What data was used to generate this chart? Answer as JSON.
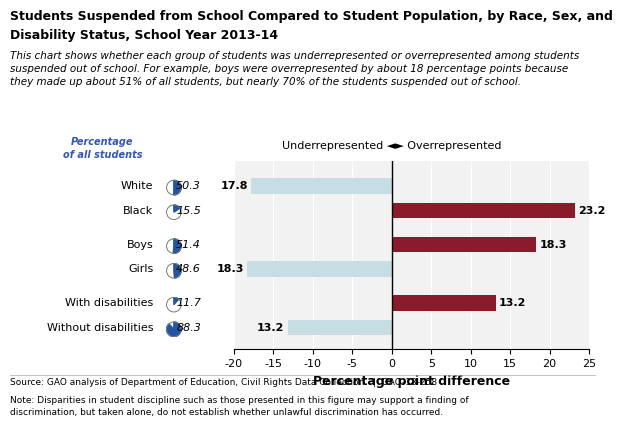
{
  "title_line1": "Students Suspended from School Compared to Student Population, by Race, Sex, and",
  "title_line2": "Disability Status, School Year 2013-14",
  "subtitle": "This chart shows whether each group of students was underrepresented or overrepresented among students\nsuspended out of school. For example, boys were overrepresented by about 18 percentage points because\nthey made up about 51% of all students, but nearly 70% of the students suspended out of school.",
  "categories": [
    "White",
    "Black",
    "Boys",
    "Girls",
    "With disabilities",
    "Without disabilities"
  ],
  "percentages": [
    50.3,
    15.5,
    51.4,
    48.6,
    11.7,
    88.3
  ],
  "values": [
    -17.8,
    23.2,
    18.3,
    -18.3,
    13.2,
    -13.2
  ],
  "bar_colors": [
    "#c5dde3",
    "#8b1a2a",
    "#8b1a2a",
    "#c5dde3",
    "#8b1a2a",
    "#c5dde3"
  ],
  "xlim": [
    -20,
    25
  ],
  "xticks": [
    -20,
    -15,
    -10,
    -5,
    0,
    5,
    10,
    15,
    20,
    25
  ],
  "xlabel": "Percentage point difference",
  "pct_label_color": "#3355bb",
  "source_text": "Source: GAO analysis of Department of Education, Civil Rights Data Collection.  |  GAO-18-258",
  "note_text": "Note: Disparities in student discipline such as those presented in this figure may support a finding of\ndiscrimination, but taken alone, do not establish whether unlawful discrimination has occurred.",
  "pie_fill_fractions": [
    0.503,
    0.155,
    0.514,
    0.486,
    0.117,
    0.883
  ],
  "bar_height": 0.5,
  "y_positions": [
    5.2,
    4.4,
    3.3,
    2.5,
    1.4,
    0.6
  ],
  "ylim": [
    -0.1,
    6.0
  ],
  "label_fontsize": 8,
  "title_fontsize": 9,
  "subtitle_fontsize": 7.5,
  "tick_fontsize": 8
}
